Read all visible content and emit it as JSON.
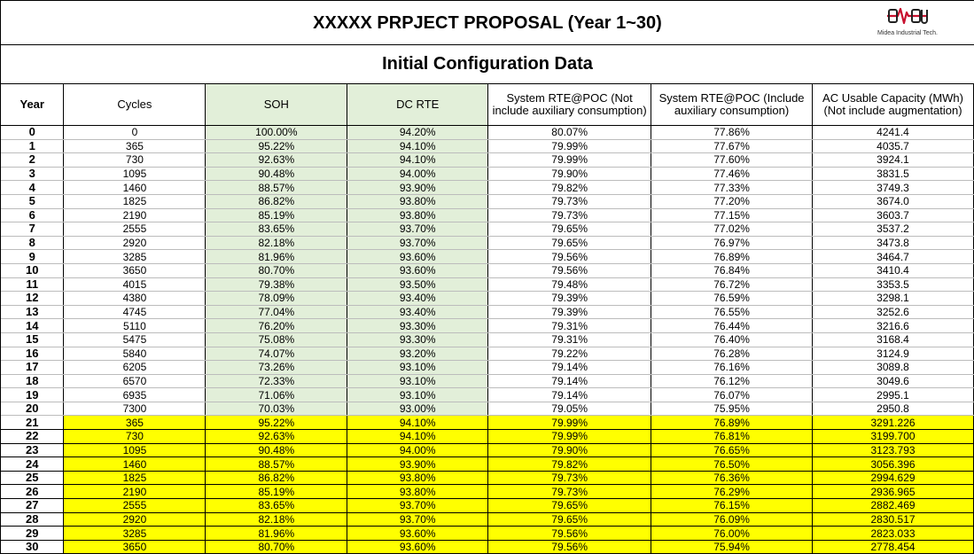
{
  "header": {
    "title": "XXXXX PRPJECT PROPOSAL (Year 1~30)",
    "logo_text": "Midea Industrial Tech."
  },
  "subtitle": "Initial Configuration Data",
  "columns": {
    "year": "Year",
    "cycles": "Cycles",
    "soh": "SOH",
    "dc_rte": "DC RTE",
    "sys_rte_no_aux": "System RTE@POC (Not include auxiliary consumption)",
    "sys_rte_aux": "System RTE@POC (Include auxiliary consumption)",
    "ac_capacity": "AC Usable Capacity (MWh) (Not include augmentation)"
  },
  "rows": [
    {
      "year": "0",
      "cycles": "0",
      "soh": "100.00%",
      "dc_rte": "94.20%",
      "sys_rte_no_aux": "80.07%",
      "sys_rte_aux": "77.86%",
      "ac": "4241.4"
    },
    {
      "year": "1",
      "cycles": "365",
      "soh": "95.22%",
      "dc_rte": "94.10%",
      "sys_rte_no_aux": "79.99%",
      "sys_rte_aux": "77.67%",
      "ac": "4035.7"
    },
    {
      "year": "2",
      "cycles": "730",
      "soh": "92.63%",
      "dc_rte": "94.10%",
      "sys_rte_no_aux": "79.99%",
      "sys_rte_aux": "77.60%",
      "ac": "3924.1"
    },
    {
      "year": "3",
      "cycles": "1095",
      "soh": "90.48%",
      "dc_rte": "94.00%",
      "sys_rte_no_aux": "79.90%",
      "sys_rte_aux": "77.46%",
      "ac": "3831.5"
    },
    {
      "year": "4",
      "cycles": "1460",
      "soh": "88.57%",
      "dc_rte": "93.90%",
      "sys_rte_no_aux": "79.82%",
      "sys_rte_aux": "77.33%",
      "ac": "3749.3"
    },
    {
      "year": "5",
      "cycles": "1825",
      "soh": "86.82%",
      "dc_rte": "93.80%",
      "sys_rte_no_aux": "79.73%",
      "sys_rte_aux": "77.20%",
      "ac": "3674.0"
    },
    {
      "year": "6",
      "cycles": "2190",
      "soh": "85.19%",
      "dc_rte": "93.80%",
      "sys_rte_no_aux": "79.73%",
      "sys_rte_aux": "77.15%",
      "ac": "3603.7"
    },
    {
      "year": "7",
      "cycles": "2555",
      "soh": "83.65%",
      "dc_rte": "93.70%",
      "sys_rte_no_aux": "79.65%",
      "sys_rte_aux": "77.02%",
      "ac": "3537.2"
    },
    {
      "year": "8",
      "cycles": "2920",
      "soh": "82.18%",
      "dc_rte": "93.70%",
      "sys_rte_no_aux": "79.65%",
      "sys_rte_aux": "76.97%",
      "ac": "3473.8"
    },
    {
      "year": "9",
      "cycles": "3285",
      "soh": "81.96%",
      "dc_rte": "93.60%",
      "sys_rte_no_aux": "79.56%",
      "sys_rte_aux": "76.89%",
      "ac": "3464.7"
    },
    {
      "year": "10",
      "cycles": "3650",
      "soh": "80.70%",
      "dc_rte": "93.60%",
      "sys_rte_no_aux": "79.56%",
      "sys_rte_aux": "76.84%",
      "ac": "3410.4"
    },
    {
      "year": "11",
      "cycles": "4015",
      "soh": "79.38%",
      "dc_rte": "93.50%",
      "sys_rte_no_aux": "79.48%",
      "sys_rte_aux": "76.72%",
      "ac": "3353.5"
    },
    {
      "year": "12",
      "cycles": "4380",
      "soh": "78.09%",
      "dc_rte": "93.40%",
      "sys_rte_no_aux": "79.39%",
      "sys_rte_aux": "76.59%",
      "ac": "3298.1"
    },
    {
      "year": "13",
      "cycles": "4745",
      "soh": "77.04%",
      "dc_rte": "93.40%",
      "sys_rte_no_aux": "79.39%",
      "sys_rte_aux": "76.55%",
      "ac": "3252.6"
    },
    {
      "year": "14",
      "cycles": "5110",
      "soh": "76.20%",
      "dc_rte": "93.30%",
      "sys_rte_no_aux": "79.31%",
      "sys_rte_aux": "76.44%",
      "ac": "3216.6"
    },
    {
      "year": "15",
      "cycles": "5475",
      "soh": "75.08%",
      "dc_rte": "93.30%",
      "sys_rte_no_aux": "79.31%",
      "sys_rte_aux": "76.40%",
      "ac": "3168.4"
    },
    {
      "year": "16",
      "cycles": "5840",
      "soh": "74.07%",
      "dc_rte": "93.20%",
      "sys_rte_no_aux": "79.22%",
      "sys_rte_aux": "76.28%",
      "ac": "3124.9"
    },
    {
      "year": "17",
      "cycles": "6205",
      "soh": "73.26%",
      "dc_rte": "93.10%",
      "sys_rte_no_aux": "79.14%",
      "sys_rte_aux": "76.16%",
      "ac": "3089.8"
    },
    {
      "year": "18",
      "cycles": "6570",
      "soh": "72.33%",
      "dc_rte": "93.10%",
      "sys_rte_no_aux": "79.14%",
      "sys_rte_aux": "76.12%",
      "ac": "3049.6"
    },
    {
      "year": "19",
      "cycles": "6935",
      "soh": "71.06%",
      "dc_rte": "93.10%",
      "sys_rte_no_aux": "79.14%",
      "sys_rte_aux": "76.07%",
      "ac": "2995.1"
    },
    {
      "year": "20",
      "cycles": "7300",
      "soh": "70.03%",
      "dc_rte": "93.00%",
      "sys_rte_no_aux": "79.05%",
      "sys_rte_aux": "75.95%",
      "ac": "2950.8"
    },
    {
      "year": "21",
      "cycles": "365",
      "soh": "95.22%",
      "dc_rte": "94.10%",
      "sys_rte_no_aux": "79.99%",
      "sys_rte_aux": "76.89%",
      "ac": "3291.226"
    },
    {
      "year": "22",
      "cycles": "730",
      "soh": "92.63%",
      "dc_rte": "94.10%",
      "sys_rte_no_aux": "79.99%",
      "sys_rte_aux": "76.81%",
      "ac": "3199.700"
    },
    {
      "year": "23",
      "cycles": "1095",
      "soh": "90.48%",
      "dc_rte": "94.00%",
      "sys_rte_no_aux": "79.90%",
      "sys_rte_aux": "76.65%",
      "ac": "3123.793"
    },
    {
      "year": "24",
      "cycles": "1460",
      "soh": "88.57%",
      "dc_rte": "93.90%",
      "sys_rte_no_aux": "79.82%",
      "sys_rte_aux": "76.50%",
      "ac": "3056.396"
    },
    {
      "year": "25",
      "cycles": "1825",
      "soh": "86.82%",
      "dc_rte": "93.80%",
      "sys_rte_no_aux": "79.73%",
      "sys_rte_aux": "76.36%",
      "ac": "2994.629"
    },
    {
      "year": "26",
      "cycles": "2190",
      "soh": "85.19%",
      "dc_rte": "93.80%",
      "sys_rte_no_aux": "79.73%",
      "sys_rte_aux": "76.29%",
      "ac": "2936.965"
    },
    {
      "year": "27",
      "cycles": "2555",
      "soh": "83.65%",
      "dc_rte": "93.70%",
      "sys_rte_no_aux": "79.65%",
      "sys_rte_aux": "76.15%",
      "ac": "2882.469"
    },
    {
      "year": "28",
      "cycles": "2920",
      "soh": "82.18%",
      "dc_rte": "93.70%",
      "sys_rte_no_aux": "79.65%",
      "sys_rte_aux": "76.09%",
      "ac": "2830.517"
    },
    {
      "year": "29",
      "cycles": "3285",
      "soh": "81.96%",
      "dc_rte": "93.60%",
      "sys_rte_no_aux": "79.56%",
      "sys_rte_aux": "76.00%",
      "ac": "2823.033"
    },
    {
      "year": "30",
      "cycles": "3650",
      "soh": "80.70%",
      "dc_rte": "93.60%",
      "sys_rte_no_aux": "79.56%",
      "sys_rte_aux": "75.94%",
      "ac": "2778.454"
    }
  ],
  "colors": {
    "green_fill": "#e2efd9",
    "highlight_fill": "#ffff00",
    "logo_red": "#c8102e"
  }
}
